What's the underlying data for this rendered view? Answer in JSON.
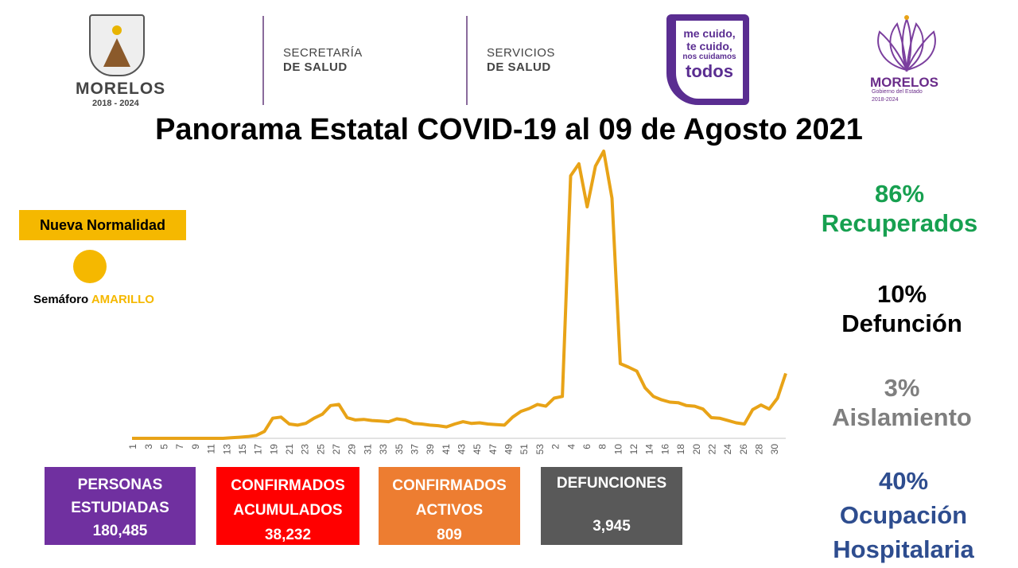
{
  "header": {
    "state_name": "MORELOS",
    "state_years": "2018 - 2024",
    "dept1": {
      "line1": "SECRETARÍA",
      "line2": "DE SALUD"
    },
    "dept2": {
      "line1": "SERVICIOS",
      "line2": "DE SALUD"
    },
    "campaign": {
      "line1": "me cuido,",
      "line2": "te cuido,",
      "line3": "nos cuidamos",
      "line4": "todos"
    },
    "gov": {
      "name": "MORELOS",
      "line2": "Gobierno del Estado",
      "line3": "2018-2024"
    }
  },
  "title": "Panorama Estatal COVID-19 al 09 de Agosto 2021",
  "traffic_light": {
    "label": "Nueva Normalidad",
    "prefix": "Semáforo",
    "status": "AMARILLO",
    "color": "#f5b800"
  },
  "stats": [
    {
      "pct": "86%",
      "label": "Recuperados",
      "color": "#17a050"
    },
    {
      "pct": "10%",
      "label": "Defunción",
      "color": "#000000"
    },
    {
      "pct": "3%",
      "label": "Aislamiento",
      "color": "#7f7f7f"
    },
    {
      "pct": "40%",
      "label": "Ocupación Hospitalaria",
      "color": "#2e4d8f"
    }
  ],
  "boxes": [
    {
      "label": "PERSONAS ESTUDIADAS",
      "value": "180,485",
      "color": "#7030a0"
    },
    {
      "label": "CONFIRMADOS ACUMULADOS",
      "value": "38,232",
      "color": "#ff0000"
    },
    {
      "label": "CONFIRMADOS ACTIVOS",
      "value": "809",
      "color": "#ed7d31"
    },
    {
      "label": "DEFUNCIONES",
      "value": "3,945",
      "color": "#595959"
    }
  ],
  "chart_data": {
    "type": "line",
    "color": "#e8a317",
    "x_ticks": [
      "1",
      "3",
      "5",
      "7",
      "9",
      "11",
      "13",
      "15",
      "17",
      "19",
      "21",
      "23",
      "25",
      "27",
      "29",
      "31",
      "33",
      "35",
      "37",
      "39",
      "41",
      "43",
      "45",
      "47",
      "49",
      "51",
      "53",
      "2",
      "4",
      "6",
      "8",
      "10",
      "12",
      "14",
      "16",
      "18",
      "20",
      "22",
      "24",
      "26",
      "28",
      "30"
    ],
    "values": [
      0,
      0,
      0,
      0,
      0,
      0,
      0,
      0,
      0,
      0,
      0,
      0,
      1,
      2,
      3,
      5,
      12,
      35,
      37,
      25,
      23,
      26,
      35,
      42,
      57,
      59,
      36,
      32,
      33,
      31,
      30,
      29,
      34,
      32,
      26,
      25,
      23,
      22,
      20,
      25,
      29,
      26,
      27,
      25,
      24,
      23,
      37,
      47,
      52,
      59,
      56,
      70,
      73,
      457,
      478,
      403,
      474,
      500,
      418,
      130,
      124,
      117,
      88,
      73,
      67,
      63,
      62,
      57,
      56,
      51,
      36,
      35,
      31,
      27,
      25,
      50,
      58,
      51,
      70,
      113
    ]
  }
}
